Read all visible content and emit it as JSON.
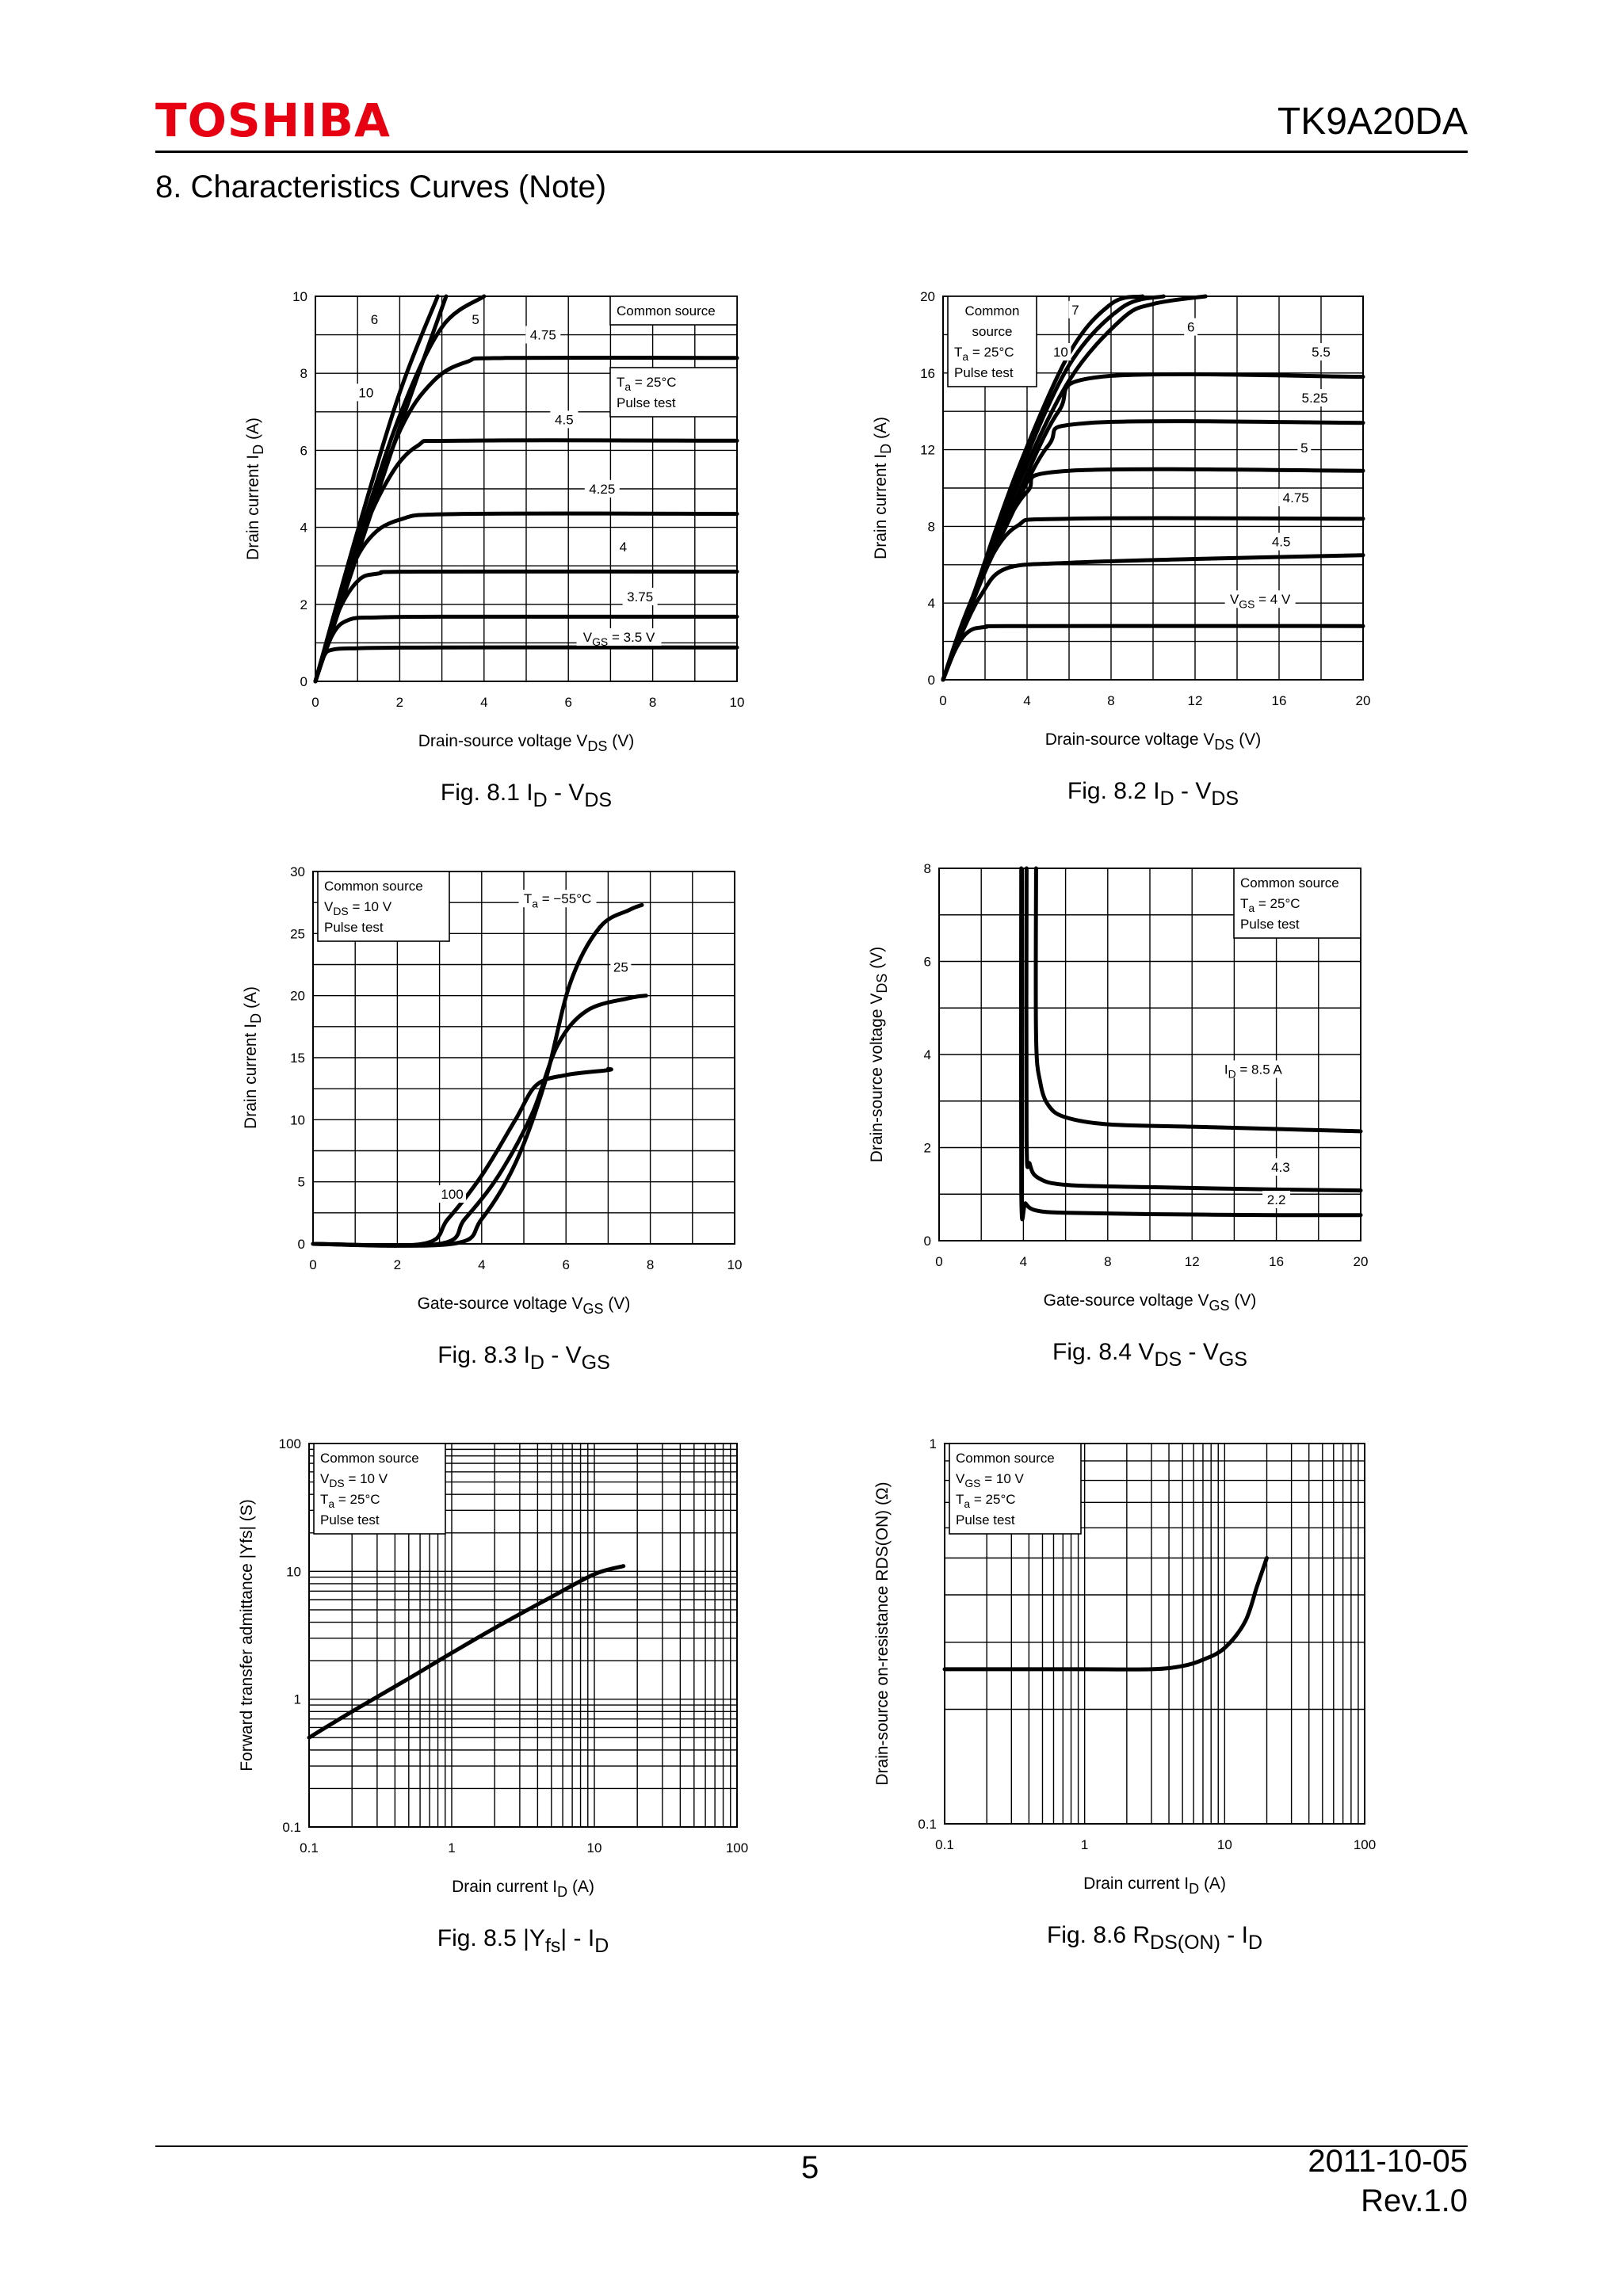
{
  "header": {
    "brand": "TOSHIBA",
    "doc_id": "TK9A20DA",
    "section_title": "8.  Characteristics Curves (Note)"
  },
  "footer": {
    "page": "5",
    "date": "2011-10-05",
    "revision": "Rev.1.0"
  },
  "chart_data": [
    {
      "id": "fig81",
      "type": "line",
      "caption": {
        "main": "Fig. 8.1",
        "t1": "I",
        "s1": "D",
        "t2": " - V",
        "s2": "DS"
      },
      "xlabel": {
        "text": "Drain-source voltage",
        "sym": "V",
        "sub": "DS",
        "unit": "(V)"
      },
      "ylabel": {
        "text": "Drain current",
        "sym": "I",
        "sub": "D",
        "unit": "(A)"
      },
      "xlim": [
        0,
        10
      ],
      "ylim": [
        0,
        10
      ],
      "xticks": [
        0,
        2,
        4,
        6,
        8,
        10
      ],
      "yticks": [
        0,
        2,
        4,
        6,
        8,
        10
      ],
      "grid": {
        "x": 10,
        "y": 10
      },
      "notes": [
        {
          "lines": [
            "Common source"
          ],
          "pos": "top-right"
        },
        {
          "lines": [
            "Ta = 25°C",
            "Pulse test"
          ],
          "pos": "right"
        }
      ],
      "series": [
        {
          "name": "3.5",
          "x": [
            0,
            0.2,
            0.4,
            1,
            3,
            10
          ],
          "y": [
            0,
            0.65,
            0.82,
            0.86,
            0.88,
            0.88
          ]
        },
        {
          "name": "3.75",
          "x": [
            0,
            0.4,
            0.8,
            1.5,
            3,
            10
          ],
          "y": [
            0,
            1.2,
            1.6,
            1.66,
            1.68,
            1.68
          ]
        },
        {
          "name": "4",
          "x": [
            0,
            0.5,
            1,
            1.5,
            2.5,
            10
          ],
          "y": [
            0,
            1.7,
            2.6,
            2.8,
            2.85,
            2.85
          ]
        },
        {
          "name": "4.25",
          "x": [
            0,
            0.6,
            1.2,
            2,
            3.5,
            10
          ],
          "y": [
            0,
            2.2,
            3.6,
            4.2,
            4.35,
            4.35
          ]
        },
        {
          "name": "4.5",
          "x": [
            0,
            0.8,
            1.6,
            2.4,
            3.5,
            10
          ],
          "y": [
            0,
            2.9,
            5,
            6.1,
            6.25,
            6.25
          ]
        },
        {
          "name": "4.75",
          "x": [
            0,
            1,
            2,
            2.8,
            3.6,
            4.5,
            10
          ],
          "y": [
            0,
            3.5,
            6.5,
            7.8,
            8.3,
            8.4,
            8.4
          ]
        },
        {
          "name": "5",
          "x": [
            0,
            1,
            2,
            3,
            4
          ],
          "y": [
            0,
            3.6,
            6.9,
            9.2,
            10
          ]
        },
        {
          "name": "6",
          "x": [
            0,
            1,
            2,
            2.9
          ],
          "y": [
            0,
            3.9,
            7.5,
            10
          ]
        },
        {
          "name": "10",
          "x": [
            0,
            1,
            2,
            3.1
          ],
          "y": [
            0,
            3.3,
            6.6,
            10
          ]
        }
      ],
      "curve_labels": [
        {
          "text": "6",
          "x": 1.4,
          "y": 9.3
        },
        {
          "text": "5",
          "x": 3.8,
          "y": 9.3
        },
        {
          "text": "4.75",
          "x": 5.4,
          "y": 8.9
        },
        {
          "text": "10",
          "x": 1.2,
          "y": 7.4
        },
        {
          "text": "4.5",
          "x": 5.9,
          "y": 6.7
        },
        {
          "text": "4.25",
          "x": 6.8,
          "y": 4.9
        },
        {
          "text": "4",
          "x": 7.3,
          "y": 3.4
        },
        {
          "text": "3.75",
          "x": 7.7,
          "y": 2.1
        },
        {
          "text": "VGS = 3.5 V",
          "x": 7.2,
          "y": 1.05
        }
      ]
    },
    {
      "id": "fig82",
      "type": "line",
      "caption": {
        "main": "Fig. 8.2",
        "t1": "I",
        "s1": "D",
        "t2": " - V",
        "s2": "DS"
      },
      "xlabel": {
        "text": "Drain-source voltage",
        "sym": "V",
        "sub": "DS",
        "unit": "(V)"
      },
      "ylabel": {
        "text": "Drain current",
        "sym": "I",
        "sub": "D",
        "unit": "(A)"
      },
      "xlim": [
        0,
        20
      ],
      "ylim": [
        0,
        20
      ],
      "xticks": [
        0,
        4,
        8,
        12,
        16,
        20
      ],
      "yticks": [
        0,
        4,
        8,
        12,
        16,
        20
      ],
      "grid": {
        "x": 10,
        "y": 10
      },
      "notes": [
        {
          "lines": [
            "Common",
            "source",
            "Ta = 25°C",
            "Pulse test"
          ],
          "pos": "top-left"
        }
      ],
      "series": [
        {
          "name": "4",
          "x": [
            0,
            0.6,
            1.2,
            2,
            4,
            20
          ],
          "y": [
            0,
            1.6,
            2.5,
            2.75,
            2.8,
            2.8
          ]
        },
        {
          "name": "4.5",
          "x": [
            0,
            0.8,
            1.8,
            3,
            6,
            12,
            20
          ],
          "y": [
            0,
            2.2,
            4.4,
            5.8,
            6.1,
            6.3,
            6.5
          ]
        },
        {
          "name": "4.75",
          "x": [
            0,
            1,
            2,
            3.5,
            6,
            20
          ],
          "y": [
            0,
            3,
            5.8,
            8,
            8.4,
            8.4
          ]
        },
        {
          "name": "5",
          "x": [
            0,
            1,
            2.5,
            4,
            6,
            20
          ],
          "y": [
            0,
            3.2,
            7,
            9.8,
            10.9,
            10.9
          ]
        },
        {
          "name": "5.25",
          "x": [
            0,
            1.2,
            3,
            5,
            7,
            20
          ],
          "y": [
            0,
            3.6,
            8,
            12.2,
            13.4,
            13.4
          ]
        },
        {
          "name": "5.5",
          "x": [
            0,
            1.5,
            3.5,
            5.5,
            7.5,
            20
          ],
          "y": [
            0,
            4.3,
            9.5,
            14,
            15.8,
            15.8
          ]
        },
        {
          "name": "6",
          "x": [
            0,
            1.5,
            3.5,
            6,
            8.5,
            10,
            12.5
          ],
          "y": [
            0,
            4.4,
            10,
            15.6,
            18.8,
            19.6,
            20
          ]
        },
        {
          "name": "7",
          "x": [
            0,
            1.5,
            3.5,
            6,
            8.5,
            10.5
          ],
          "y": [
            0,
            4.5,
            10.4,
            16.4,
            19.4,
            20
          ]
        },
        {
          "name": "10",
          "x": [
            0,
            1.5,
            3.5,
            6,
            8,
            9.5
          ],
          "y": [
            0,
            4.6,
            10.8,
            17,
            19.6,
            20
          ]
        }
      ],
      "curve_labels": [
        {
          "text": "7",
          "x": 6.3,
          "y": 19.1
        },
        {
          "text": "6",
          "x": 11.8,
          "y": 18.2
        },
        {
          "text": "10",
          "x": 5.6,
          "y": 16.9
        },
        {
          "text": "5.5",
          "x": 18,
          "y": 16.9
        },
        {
          "text": "5.25",
          "x": 17.7,
          "y": 14.5
        },
        {
          "text": "5",
          "x": 17.2,
          "y": 11.9
        },
        {
          "text": "4.75",
          "x": 16.8,
          "y": 9.3
        },
        {
          "text": "4.5",
          "x": 16.1,
          "y": 7
        },
        {
          "text": "VGS = 4 V",
          "x": 15.1,
          "y": 4
        }
      ]
    },
    {
      "id": "fig83",
      "type": "line",
      "caption": {
        "main": "Fig. 8.3",
        "t1": "I",
        "s1": "D",
        "t2": " - V",
        "s2": "GS"
      },
      "xlabel": {
        "text": "Gate-source voltage",
        "sym": "V",
        "sub": "GS",
        "unit": "(V)"
      },
      "ylabel": {
        "text": "Drain current",
        "sym": "I",
        "sub": "D",
        "unit": "(A)"
      },
      "xlim": [
        0,
        10
      ],
      "ylim": [
        0,
        30
      ],
      "xticks": [
        0,
        2,
        4,
        6,
        8,
        10
      ],
      "yticks": [
        0,
        5,
        10,
        15,
        20,
        25,
        30
      ],
      "grid": {
        "x": 10,
        "y": 12
      },
      "notes": [
        {
          "lines": [
            "Common source",
            "VDS = 10 V",
            "Pulse test"
          ],
          "pos": "top-left"
        }
      ],
      "series": [
        {
          "name": "100",
          "x": [
            0,
            2.6,
            3.2,
            4,
            4.8,
            5.3,
            6,
            7,
            7.0
          ],
          "y": [
            0,
            0,
            2,
            5.5,
            10,
            12.8,
            13.6,
            14,
            14.1
          ]
        },
        {
          "name": "25",
          "x": [
            0,
            3,
            3.6,
            4.4,
            5.2,
            5.8,
            6.5,
            7.5,
            7.9
          ],
          "y": [
            0,
            0,
            2,
            5.5,
            10.5,
            16,
            18.8,
            19.8,
            20
          ]
        },
        {
          "name": "-55",
          "x": [
            0,
            3.3,
            4,
            4.8,
            5.5,
            6.1,
            6.8,
            7.5,
            7.8
          ],
          "y": [
            0,
            0,
            2,
            6.5,
            13,
            21,
            25.5,
            26.9,
            27.3
          ]
        }
      ],
      "curve_labels": [
        {
          "text": "Ta = −55°C",
          "x": 5.8,
          "y": 27.5
        },
        {
          "text": "25",
          "x": 7.3,
          "y": 22
        },
        {
          "text": "100",
          "x": 3.3,
          "y": 3.7
        }
      ]
    },
    {
      "id": "fig84",
      "type": "line",
      "caption": {
        "main": "Fig. 8.4",
        "t1": "V",
        "s1": "DS",
        "t2": " - V",
        "s2": "GS"
      },
      "xlabel": {
        "text": "Gate-source voltage",
        "sym": "V",
        "sub": "GS",
        "unit": "(V)"
      },
      "ylabel": {
        "text": "Drain-source voltage",
        "sym": "V",
        "sub": "DS",
        "unit": "(V)"
      },
      "xlim": [
        0,
        20
      ],
      "ylim": [
        0,
        8
      ],
      "xticks": [
        0,
        4,
        8,
        12,
        16,
        20
      ],
      "yticks": [
        0,
        2,
        4,
        6,
        8
      ],
      "grid": {
        "x": 10,
        "y": 8
      },
      "notes": [
        {
          "lines": [
            "Common source",
            "Ta = 25°C",
            "Pulse test"
          ],
          "pos": "top-right"
        }
      ],
      "series": [
        {
          "name": "8.5",
          "x": [
            4.6,
            4.6,
            4.8,
            5.2,
            6,
            8,
            12,
            16,
            20
          ],
          "y": [
            8,
            4.4,
            3.4,
            2.9,
            2.65,
            2.5,
            2.45,
            2.4,
            2.35
          ]
        },
        {
          "name": "4.3",
          "x": [
            4.15,
            4.15,
            4.3,
            4.7,
            6,
            10,
            16,
            20
          ],
          "y": [
            8,
            2.2,
            1.65,
            1.35,
            1.2,
            1.15,
            1.1,
            1.08
          ]
        },
        {
          "name": "2.2",
          "x": [
            3.9,
            3.9,
            4.1,
            4.6,
            6,
            10,
            16,
            20
          ],
          "y": [
            8,
            1.05,
            0.8,
            0.65,
            0.6,
            0.57,
            0.55,
            0.55
          ]
        }
      ],
      "curve_labels": [
        {
          "text": "ID = 8.5 A",
          "x": 14.9,
          "y": 3.6
        },
        {
          "text": "4.3",
          "x": 16.2,
          "y": 1.5
        },
        {
          "text": "2.2",
          "x": 16.0,
          "y": 0.8
        }
      ]
    },
    {
      "id": "fig85",
      "type": "line",
      "caption": {
        "main": "Fig. 8.5",
        "t1": "|Y",
        "s1": "fs",
        "t2": "| - I",
        "s2": "D"
      },
      "xlabel": {
        "text": "Drain current",
        "sym": "I",
        "sub": "D",
        "unit": "(A)"
      },
      "ylabel": {
        "text": "Forward transfer admittance",
        "sym": "|Yfs|",
        "sub": "",
        "unit": "(S)"
      },
      "xscale": "log",
      "yscale": "log",
      "xlim": [
        0.1,
        100
      ],
      "ylim": [
        0.1,
        100
      ],
      "xticks": [
        0.1,
        1,
        10,
        100
      ],
      "yticks": [
        0.1,
        1,
        10,
        100
      ],
      "notes": [
        {
          "lines": [
            "Common source",
            "VDS = 10 V",
            "Ta = 25°C",
            "Pulse test"
          ],
          "pos": "top-left"
        }
      ],
      "series": [
        {
          "name": "|Yfs|",
          "x": [
            0.1,
            0.2,
            0.5,
            1,
            2,
            5,
            10,
            16
          ],
          "y": [
            0.5,
            0.8,
            1.45,
            2.3,
            3.6,
            6.3,
            9.5,
            11
          ]
        }
      ],
      "curve_labels": []
    },
    {
      "id": "fig86",
      "type": "line",
      "caption": {
        "main": "Fig. 8.6",
        "t1": "R",
        "s1": "DS(ON)",
        "t2": " - I",
        "s2": "D"
      },
      "xlabel": {
        "text": "Drain current",
        "sym": "I",
        "sub": "D",
        "unit": "(A)"
      },
      "ylabel": {
        "text": "Drain-source on-resistance",
        "sym": "RDS(ON)",
        "sub": "",
        "unit": "(Ω)"
      },
      "xscale": "log",
      "yscale": "log",
      "xlim": [
        0.1,
        100
      ],
      "ylim": [
        0.1,
        1
      ],
      "xticks": [
        0.1,
        1,
        10,
        100
      ],
      "yticks": [
        0.1,
        1
      ],
      "notes": [
        {
          "lines": [
            "Common source",
            "VGS = 10 V",
            "Ta = 25°C",
            "Pulse test"
          ],
          "pos": "top-left"
        }
      ],
      "series": [
        {
          "name": "RDS(ON)",
          "x": [
            0.1,
            1,
            3,
            5,
            7,
            10,
            14,
            17,
            20
          ],
          "y": [
            0.255,
            0.255,
            0.255,
            0.26,
            0.27,
            0.29,
            0.34,
            0.42,
            0.5
          ]
        }
      ],
      "curve_labels": []
    }
  ]
}
